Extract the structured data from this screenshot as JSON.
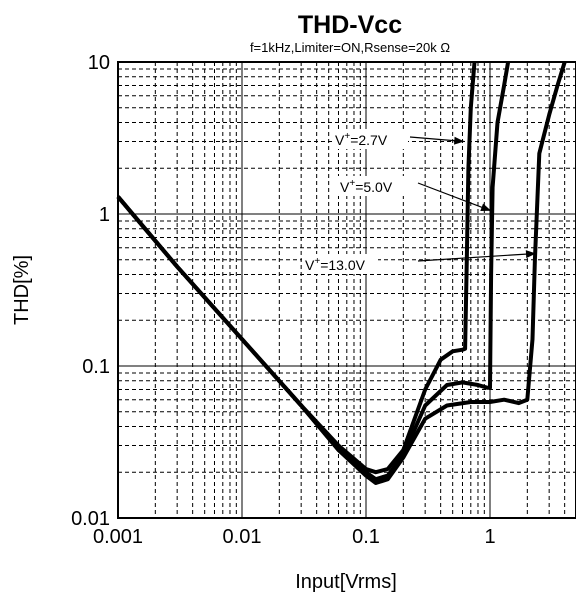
{
  "chart_data": {
    "type": "line",
    "title": "THD-Vcc",
    "subtitle": "f=1kHz,Limiter=ON,Rsense=20k  Ω",
    "xlabel": "Input[Vrms]",
    "ylabel": "THD[%]",
    "xscale": "log",
    "yscale": "log",
    "xlim": [
      0.001,
      4.5
    ],
    "ylim": [
      0.01,
      10
    ],
    "x_ticks": [
      {
        "value": 0.001,
        "label": "0.001"
      },
      {
        "value": 0.01,
        "label": "0.01"
      },
      {
        "value": 0.1,
        "label": "0.1"
      },
      {
        "value": 1,
        "label": "1"
      }
    ],
    "y_ticks": [
      {
        "value": 0.01,
        "label": "0.01"
      },
      {
        "value": 0.1,
        "label": "0.1"
      },
      {
        "value": 1,
        "label": "1"
      },
      {
        "value": 10,
        "label": "10"
      }
    ],
    "grid": true,
    "series": [
      {
        "name": "V⁺=2.7V",
        "color": "#000000",
        "points": [
          [
            0.001,
            1.3
          ],
          [
            0.003,
            0.45
          ],
          [
            0.01,
            0.15
          ],
          [
            0.03,
            0.055
          ],
          [
            0.06,
            0.03
          ],
          [
            0.1,
            0.021
          ],
          [
            0.12,
            0.02
          ],
          [
            0.15,
            0.021
          ],
          [
            0.2,
            0.028
          ],
          [
            0.3,
            0.07
          ],
          [
            0.4,
            0.11
          ],
          [
            0.5,
            0.125
          ],
          [
            0.6,
            0.128
          ],
          [
            0.63,
            0.13
          ],
          [
            0.65,
            0.5
          ],
          [
            0.67,
            2.0
          ],
          [
            0.7,
            5.0
          ],
          [
            0.75,
            10
          ]
        ]
      },
      {
        "name": "V⁺=5.0V",
        "color": "#000000",
        "points": [
          [
            0.001,
            1.3
          ],
          [
            0.003,
            0.45
          ],
          [
            0.01,
            0.15
          ],
          [
            0.03,
            0.055
          ],
          [
            0.06,
            0.028
          ],
          [
            0.1,
            0.02
          ],
          [
            0.12,
            0.018
          ],
          [
            0.15,
            0.019
          ],
          [
            0.2,
            0.026
          ],
          [
            0.3,
            0.055
          ],
          [
            0.45,
            0.075
          ],
          [
            0.6,
            0.078
          ],
          [
            0.8,
            0.075
          ],
          [
            0.95,
            0.072
          ],
          [
            1.0,
            0.072
          ],
          [
            1.02,
            0.4
          ],
          [
            1.05,
            1.5
          ],
          [
            1.15,
            4.0
          ],
          [
            1.3,
            7.0
          ],
          [
            1.4,
            10
          ]
        ]
      },
      {
        "name": "V⁺=13.0V",
        "color": "#000000",
        "points": [
          [
            0.001,
            1.3
          ],
          [
            0.003,
            0.45
          ],
          [
            0.01,
            0.15
          ],
          [
            0.03,
            0.055
          ],
          [
            0.06,
            0.028
          ],
          [
            0.1,
            0.019
          ],
          [
            0.12,
            0.017
          ],
          [
            0.15,
            0.018
          ],
          [
            0.2,
            0.025
          ],
          [
            0.3,
            0.045
          ],
          [
            0.45,
            0.055
          ],
          [
            0.7,
            0.058
          ],
          [
            1.0,
            0.058
          ],
          [
            1.3,
            0.06
          ],
          [
            1.7,
            0.057
          ],
          [
            2.0,
            0.06
          ],
          [
            2.2,
            0.15
          ],
          [
            2.3,
            0.5
          ],
          [
            2.5,
            2.5
          ],
          [
            3.0,
            4.5
          ],
          [
            3.5,
            7.0
          ],
          [
            4.0,
            10
          ]
        ]
      }
    ],
    "annotations": [
      {
        "label_main": "V",
        "label_sup": "+",
        "label_rest": "=2.7V",
        "target": [
          0.62,
          3.0
        ]
      },
      {
        "label_main": "V",
        "label_sup": "+",
        "label_rest": "=5.0V",
        "target": [
          1.02,
          1.05
        ]
      },
      {
        "label_main": "V",
        "label_sup": "+",
        "label_rest": "=13.0V",
        "target": [
          2.35,
          0.55
        ]
      }
    ]
  }
}
